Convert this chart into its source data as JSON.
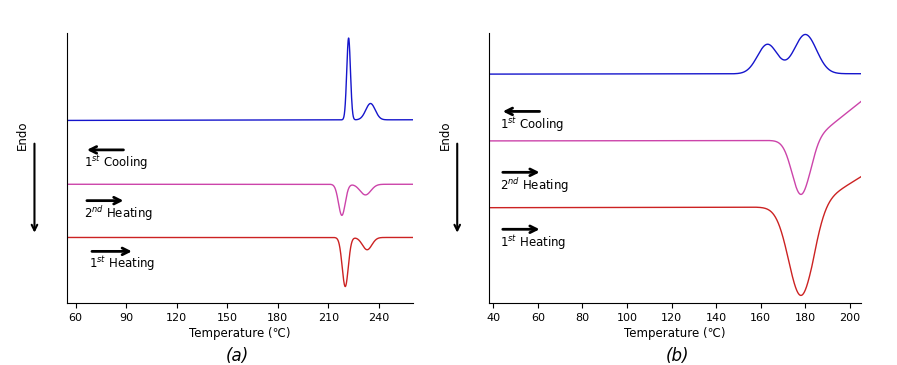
{
  "panel_a": {
    "xmin": 55,
    "xmax": 260,
    "xlabel": "Temperature (℃)",
    "xticks": [
      60,
      90,
      120,
      150,
      180,
      210,
      240
    ],
    "cooling_color": "#1515cc",
    "heating2_color": "#cc44aa",
    "heating1_color": "#cc2222"
  },
  "panel_b": {
    "xmin": 38,
    "xmax": 205,
    "xlabel": "Temperature (℃)",
    "xticks": [
      40,
      60,
      80,
      100,
      120,
      140,
      160,
      180,
      200
    ],
    "cooling_color": "#1515cc",
    "heating2_color": "#cc44aa",
    "heating1_color": "#cc2222"
  },
  "bg_color": "#ffffff",
  "label_fontsize": 8.5,
  "tick_fontsize": 8,
  "caption_fontsize": 12
}
